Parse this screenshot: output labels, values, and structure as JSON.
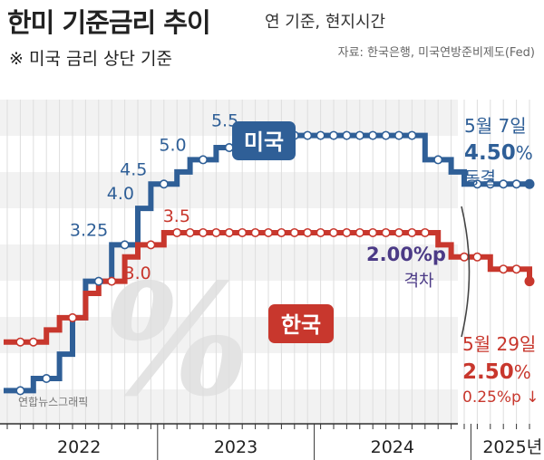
{
  "header": {
    "title": "한미 기준금리 추이",
    "unit_note": "연 기준, 현지시간",
    "note": "※ 미국 금리 상단 기준",
    "source": "자료: 한국은행, 미국연방준비제도(Fed)",
    "credit": "연합뉴스그래픽"
  },
  "chart_data": {
    "type": "line",
    "title": "한미 기준금리 추이",
    "step": true,
    "ylim": [
      0.5,
      6.2
    ],
    "x_axis_labels": [
      "2022",
      "2023",
      "2024",
      "2025년"
    ],
    "series": [
      {
        "name": "미국",
        "color": "#2f5f97",
        "values": [
          {
            "x": "2022-01",
            "y": 0.25
          },
          {
            "x": "2022-03",
            "y": 0.5
          },
          {
            "x": "2022-05",
            "y": 1.0
          },
          {
            "x": "2022-06",
            "y": 1.75
          },
          {
            "x": "2022-07",
            "y": 2.5
          },
          {
            "x": "2022-09",
            "y": 3.25
          },
          {
            "x": "2022-11",
            "y": 4.0
          },
          {
            "x": "2022-12",
            "y": 4.5
          },
          {
            "x": "2023-02",
            "y": 4.75
          },
          {
            "x": "2023-03",
            "y": 5.0
          },
          {
            "x": "2023-05",
            "y": 5.25
          },
          {
            "x": "2023-07",
            "y": 5.5
          },
          {
            "x": "2024-09",
            "y": 5.0
          },
          {
            "x": "2024-11",
            "y": 4.75
          },
          {
            "x": "2024-12",
            "y": 4.5
          },
          {
            "x": "2025-05",
            "y": 4.5
          }
        ]
      },
      {
        "name": "한국",
        "color": "#c8372d",
        "values": [
          {
            "x": "2022-01",
            "y": 1.25
          },
          {
            "x": "2022-04",
            "y": 1.5
          },
          {
            "x": "2022-05",
            "y": 1.75
          },
          {
            "x": "2022-07",
            "y": 2.25
          },
          {
            "x": "2022-08",
            "y": 2.5
          },
          {
            "x": "2022-10",
            "y": 3.0
          },
          {
            "x": "2022-11",
            "y": 3.25
          },
          {
            "x": "2023-01",
            "y": 3.5
          },
          {
            "x": "2024-10",
            "y": 3.25
          },
          {
            "x": "2024-11",
            "y": 3.0
          },
          {
            "x": "2025-02",
            "y": 2.75
          },
          {
            "x": "2025-05",
            "y": 2.5
          }
        ]
      }
    ],
    "annotations": {
      "us_rate_labels": [
        "3.25",
        "4.0",
        "4.5",
        "5.0",
        "5.5"
      ],
      "kr_rate_labels": [
        "3.0",
        "3.5"
      ],
      "us_badge": "미국",
      "kr_badge": "한국",
      "us_callout": {
        "date": "5월 7일",
        "rate": "4.50",
        "unit": "%",
        "status": "동결"
      },
      "kr_callout": {
        "date": "5월 29일",
        "rate": "2.50",
        "unit": "%",
        "change": "0.25%p ↓"
      },
      "gap": {
        "value": "2.00%p",
        "label": "격차"
      },
      "watermark": "%"
    }
  }
}
